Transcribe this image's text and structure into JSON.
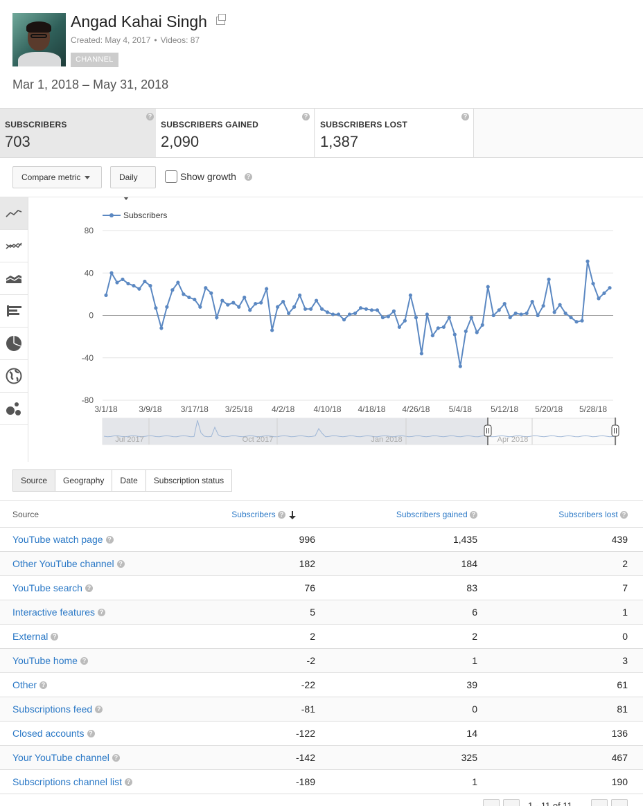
{
  "channel": {
    "name": "Angad Kahai Singh",
    "created": "Created: May 4, 2017",
    "videos": "Videos: 87",
    "badge": "CHANNEL"
  },
  "date_range": "Mar 1, 2018 – May 31, 2018",
  "metrics": [
    {
      "label": "SUBSCRIBERS",
      "value": "703"
    },
    {
      "label": "SUBSCRIBERS GAINED",
      "value": "2,090"
    },
    {
      "label": "SUBSCRIBERS LOST",
      "value": "1,387"
    }
  ],
  "controls": {
    "compare_metric": "Compare metric",
    "interval": "Daily",
    "show_growth": "Show growth"
  },
  "side_icons": [
    "line-chart-icon",
    "multi-line-chart-icon",
    "stacked-area-icon",
    "bar-chart-icon",
    "pie-chart-icon",
    "globe-icon",
    "bubble-chart-icon"
  ],
  "chart_data": {
    "type": "line",
    "series": [
      {
        "name": "Subscribers",
        "color": "#5b88c2",
        "values": [
          19,
          40,
          31,
          34,
          30,
          28,
          25,
          32,
          28,
          7,
          -12,
          8,
          24,
          31,
          20,
          17,
          15,
          8,
          26,
          21,
          -2,
          14,
          10,
          12,
          8,
          17,
          5,
          11,
          12,
          25,
          -14,
          8,
          13,
          2,
          8,
          19,
          6,
          6,
          14,
          6,
          3,
          1,
          1,
          -4,
          1,
          2,
          7,
          6,
          5,
          5,
          -2,
          -1,
          4,
          -11,
          -5,
          19,
          -2,
          -36,
          1,
          -19,
          -12,
          -11,
          -2,
          -18,
          -48,
          -15,
          -2,
          -16,
          -9,
          27,
          0,
          5,
          11,
          -2,
          2,
          1,
          2,
          13,
          0,
          9,
          34,
          3,
          10,
          2,
          -2,
          -6,
          -5,
          51,
          30,
          16,
          21,
          26
        ]
      }
    ],
    "x_tick_labels": [
      "3/1/18",
      "3/9/18",
      "3/17/18",
      "3/25/18",
      "4/2/18",
      "4/10/18",
      "4/18/18",
      "4/26/18",
      "5/4/18",
      "5/12/18",
      "5/20/18",
      "5/28/18"
    ],
    "y_tick_labels": [
      "80",
      "40",
      "0",
      "-40",
      "-80"
    ],
    "ylim": [
      -80,
      80
    ],
    "legend_position": "top-left",
    "grid": true
  },
  "navigator": {
    "labels": [
      "Jul 2017",
      "Oct 2017",
      "Jan 2018",
      "Apr 2018"
    ]
  },
  "subtabs": [
    "Source",
    "Geography",
    "Date",
    "Subscription status"
  ],
  "table": {
    "headers": {
      "source": "Source",
      "subscribers": "Subscribers",
      "gained": "Subscribers gained",
      "lost": "Subscribers lost"
    },
    "rows": [
      {
        "source": "YouTube watch page",
        "subscribers": "996",
        "gained": "1,435",
        "lost": "439"
      },
      {
        "source": "Other YouTube channel",
        "subscribers": "182",
        "gained": "184",
        "lost": "2"
      },
      {
        "source": "YouTube search",
        "subscribers": "76",
        "gained": "83",
        "lost": "7"
      },
      {
        "source": "Interactive features",
        "subscribers": "5",
        "gained": "6",
        "lost": "1"
      },
      {
        "source": "External",
        "subscribers": "2",
        "gained": "2",
        "lost": "0"
      },
      {
        "source": "YouTube home",
        "subscribers": "-2",
        "gained": "1",
        "lost": "3"
      },
      {
        "source": "Other",
        "subscribers": "-22",
        "gained": "39",
        "lost": "61"
      },
      {
        "source": "Subscriptions feed",
        "subscribers": "-81",
        "gained": "0",
        "lost": "81"
      },
      {
        "source": "Closed accounts",
        "subscribers": "-122",
        "gained": "14",
        "lost": "136"
      },
      {
        "source": "Your YouTube channel",
        "subscribers": "-142",
        "gained": "325",
        "lost": "467"
      },
      {
        "source": "Subscriptions channel list",
        "subscribers": "-189",
        "gained": "1",
        "lost": "190"
      }
    ]
  },
  "pager": "1 - 11 of 11",
  "colors": {
    "link": "#2a78c6",
    "series": "#5b88c2",
    "active_tab": "#e8e8e8"
  }
}
